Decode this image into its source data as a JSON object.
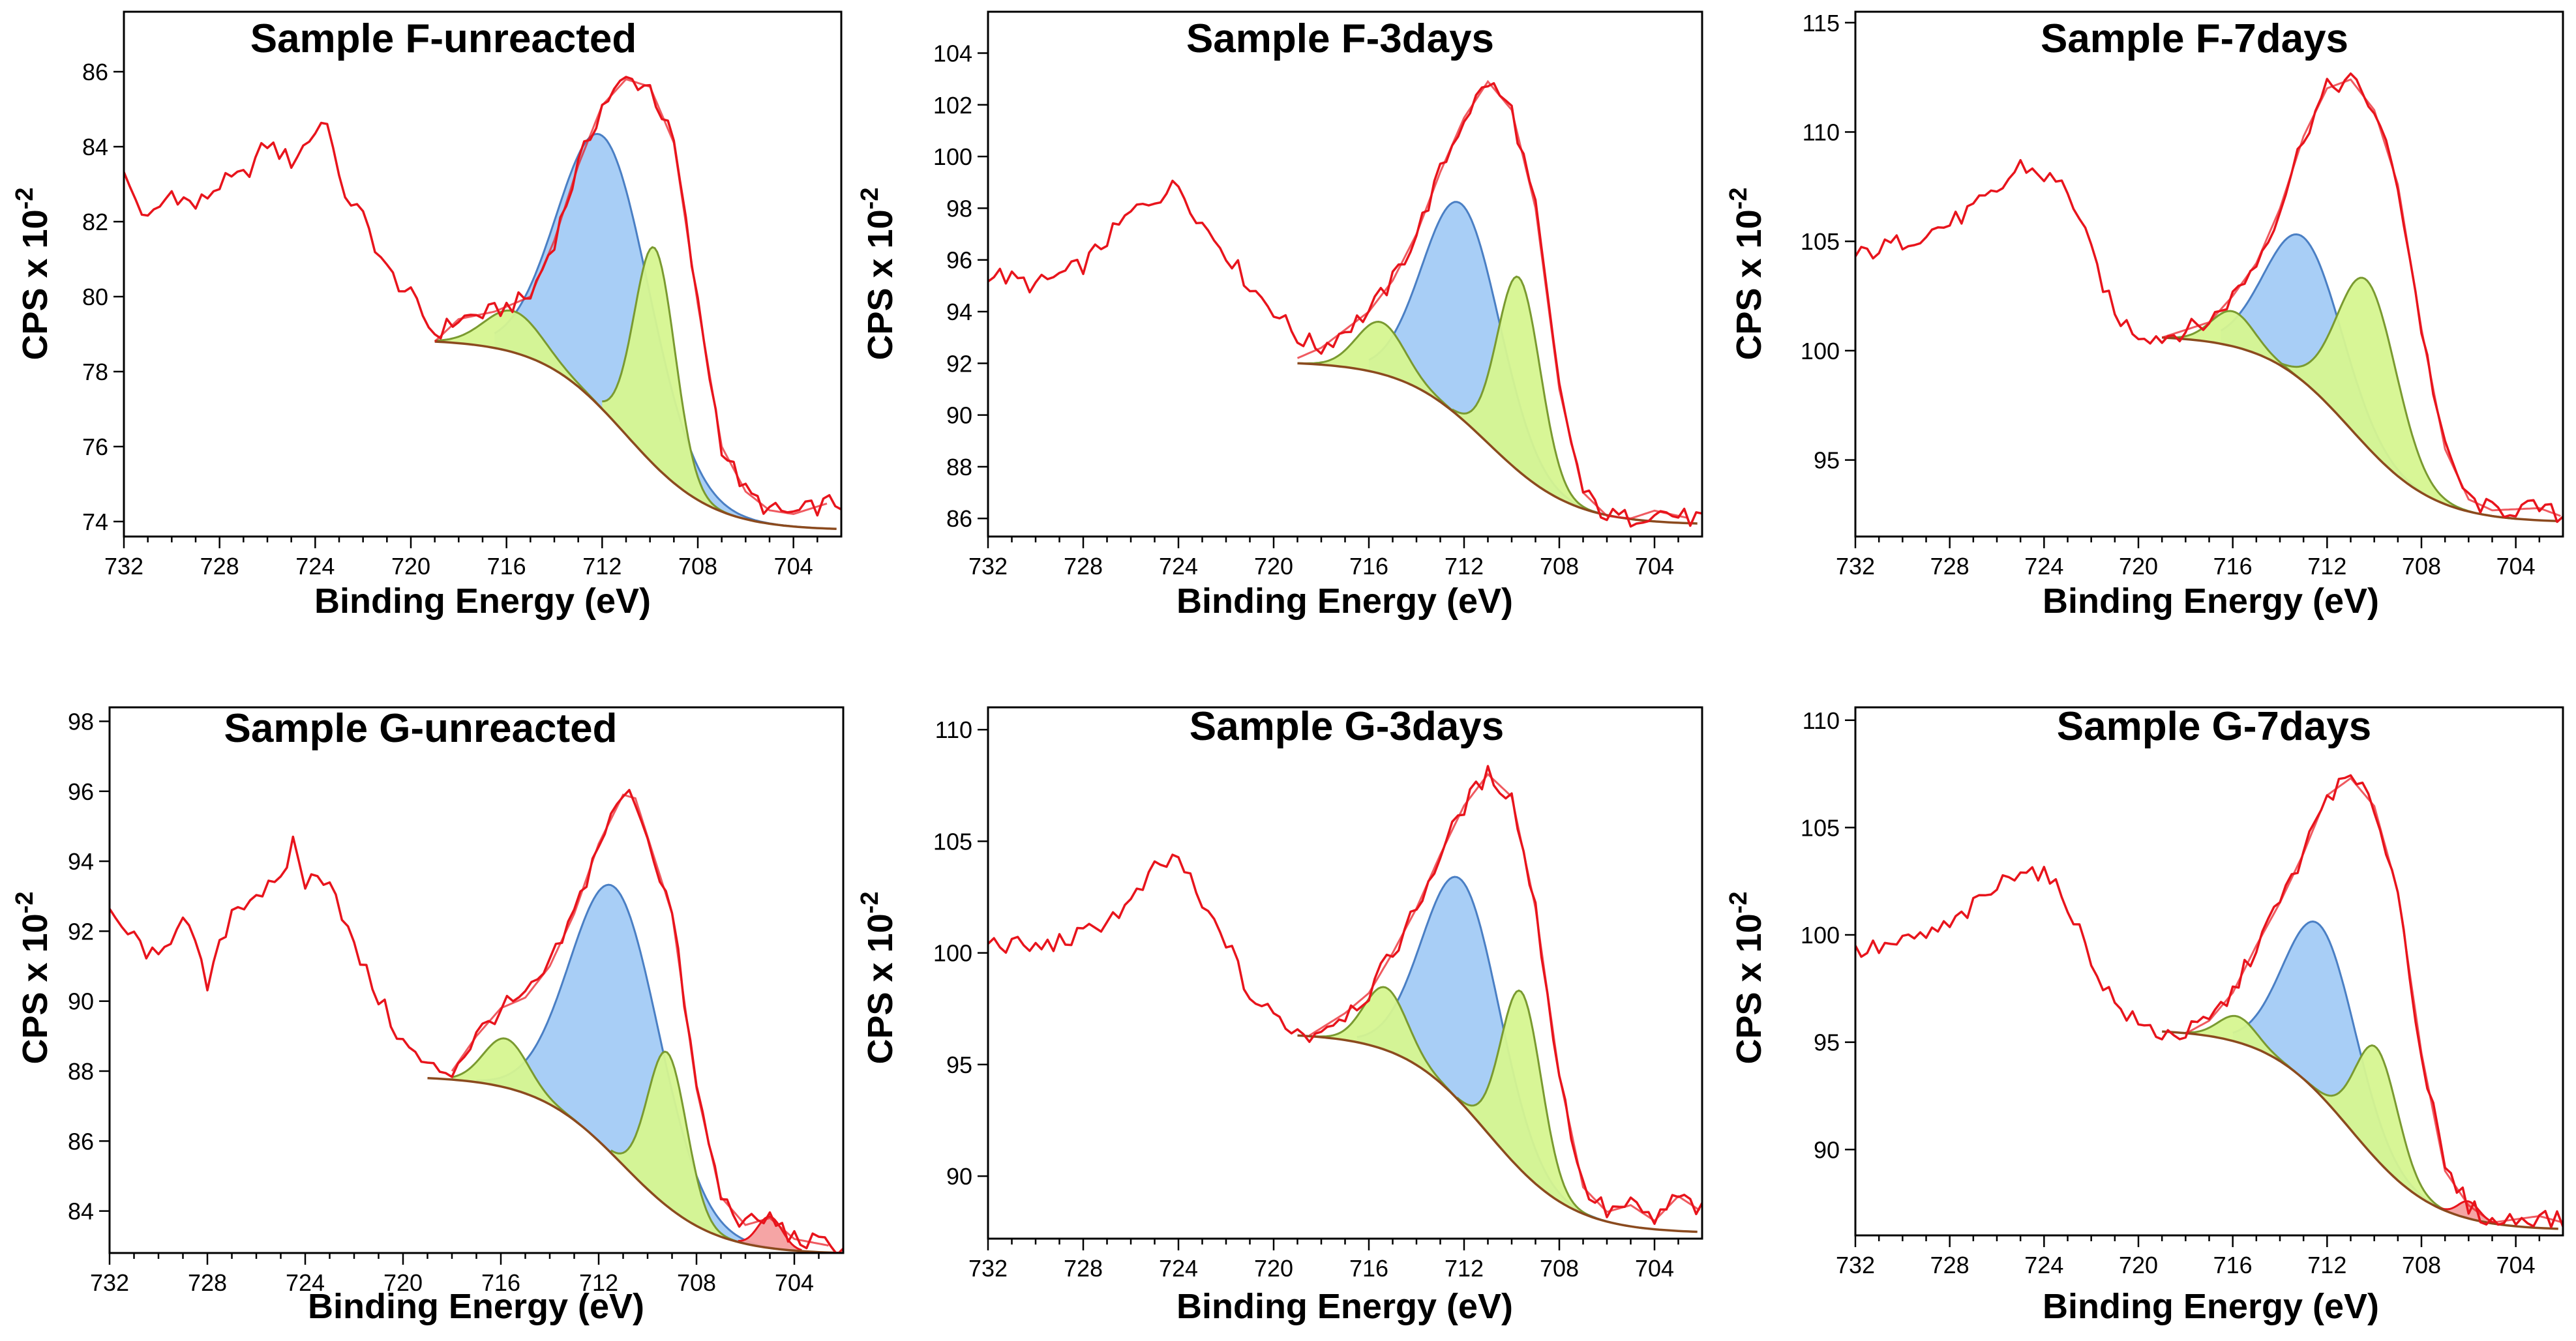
{
  "figure": {
    "x_axis_label": "Binding Energy (eV)",
    "y_axis_label": "CPS x 10",
    "y_axis_exponent": "-2"
  },
  "colors": {
    "envelope": "#e8141c",
    "main_peak": "#a3cbf5",
    "main_peak_edge": "#4a7fc4",
    "satellite": "#d6f590",
    "satellite_edge": "#7a9a30",
    "minor_peak": "#f4a0a0",
    "background": "#8b4a1e"
  },
  "chart_data": [
    {
      "type": "line",
      "id": "F-unreacted",
      "title": "Sample F-unreacted",
      "xlabel": "Binding Energy (eV)",
      "ylabel": "CPS x 10^-2",
      "xlim": [
        732,
        702
      ],
      "ylim": [
        73.6,
        87.6
      ],
      "xticks": [
        "732",
        "728",
        "724",
        "720",
        "716",
        "712",
        "708",
        "704"
      ],
      "yticks": [
        "74",
        "76",
        "78",
        "80",
        "82",
        "84",
        "86"
      ],
      "y_at_719": 78.8,
      "y_end": 73.8,
      "raw_pts": [
        [
          732,
          83.2
        ],
        [
          731,
          82.0
        ],
        [
          730,
          82.8
        ],
        [
          729,
          82.4
        ],
        [
          728,
          83.0
        ],
        [
          727,
          83.2
        ],
        [
          726,
          84.1
        ],
        [
          725,
          83.6
        ],
        [
          724,
          84.4
        ],
        [
          723.5,
          84.8
        ],
        [
          723,
          83.0
        ],
        [
          722,
          82.1
        ],
        [
          721,
          80.7
        ],
        [
          720,
          80.0
        ],
        [
          719,
          79.0
        ]
      ],
      "envelope": [
        [
          719,
          78.8
        ],
        [
          718,
          79.4
        ],
        [
          716.5,
          79.6
        ],
        [
          715,
          80.0
        ],
        [
          714,
          81.5
        ],
        [
          713,
          83.5
        ],
        [
          712,
          85.1
        ],
        [
          711,
          85.8
        ],
        [
          710,
          85.6
        ],
        [
          709,
          84.1
        ],
        [
          708,
          79.8
        ],
        [
          707,
          76.0
        ],
        [
          706,
          74.8
        ],
        [
          705,
          74.3
        ],
        [
          704,
          74.2
        ],
        [
          703,
          74.4
        ],
        [
          702.5,
          74.5
        ]
      ],
      "peaks": [
        {
          "kind": "main",
          "center": 711.9,
          "height": 7.3,
          "width": 1.9,
          "domain": [
            716.5,
            703
          ]
        },
        {
          "kind": "sat",
          "center": 709.8,
          "height": 5.8,
          "width": 0.85,
          "domain": [
            712,
            704
          ]
        },
        {
          "kind": "sat",
          "center": 715.7,
          "height": 1.1,
          "width": 1.2,
          "domain": [
            719,
            712
          ]
        }
      ]
    },
    {
      "type": "line",
      "id": "F-3days",
      "title": "Sample F-3days",
      "xlabel": "Binding Energy (eV)",
      "ylabel": "CPS x 10^-2",
      "xlim": [
        732,
        702
      ],
      "ylim": [
        85.3,
        105.6
      ],
      "xticks": [
        "732",
        "728",
        "724",
        "720",
        "716",
        "712",
        "708",
        "704"
      ],
      "yticks": [
        "86",
        "88",
        "90",
        "92",
        "94",
        "96",
        "98",
        "100",
        "102",
        "104"
      ],
      "y_at_719": 92.0,
      "y_end": 85.8,
      "raw_pts": [
        [
          732,
          95.5
        ],
        [
          730,
          95.0
        ],
        [
          728,
          95.8
        ],
        [
          726,
          97.8
        ],
        [
          725,
          98.4
        ],
        [
          724,
          98.9
        ],
        [
          723,
          97.4
        ],
        [
          722,
          96.3
        ],
        [
          721,
          95.0
        ],
        [
          720,
          94.1
        ],
        [
          719,
          93.0
        ]
      ],
      "envelope": [
        [
          719,
          92.2
        ],
        [
          718,
          92.6
        ],
        [
          716,
          94.0
        ],
        [
          715,
          95.2
        ],
        [
          714,
          97.0
        ],
        [
          713,
          99.4
        ],
        [
          712,
          101.5
        ],
        [
          711,
          102.9
        ],
        [
          710,
          101.8
        ],
        [
          709,
          98.0
        ],
        [
          708,
          91.0
        ],
        [
          707,
          87.0
        ],
        [
          706,
          86.1
        ],
        [
          705,
          86.0
        ],
        [
          704,
          86.3
        ],
        [
          702.5,
          86.0
        ]
      ],
      "peaks": [
        {
          "kind": "main",
          "center": 712.1,
          "height": 8.3,
          "width": 1.6,
          "domain": [
            716,
            704
          ]
        },
        {
          "kind": "sat",
          "center": 709.7,
          "height": 7.5,
          "width": 0.9,
          "domain": [
            712.5,
            704
          ]
        },
        {
          "kind": "sat",
          "center": 715.5,
          "height": 2.0,
          "width": 1.0,
          "domain": [
            719,
            712
          ]
        }
      ]
    },
    {
      "type": "line",
      "id": "F-7days",
      "title": "Sample F-7days",
      "xlabel": "Binding Energy (eV)",
      "ylabel": "CPS x 10^-2",
      "xlim": [
        732,
        702
      ],
      "ylim": [
        91.5,
        115.5
      ],
      "xticks": [
        "732",
        "728",
        "724",
        "720",
        "716",
        "712",
        "708",
        "704"
      ],
      "yticks": [
        "95",
        "100",
        "105",
        "110",
        "115"
      ],
      "y_at_719": 100.6,
      "y_end": 92.2,
      "raw_pts": [
        [
          732,
          104.3
        ],
        [
          730,
          105.0
        ],
        [
          728,
          105.8
        ],
        [
          726,
          107.2
        ],
        [
          725,
          108.5
        ],
        [
          724,
          108.0
        ],
        [
          723,
          107.4
        ],
        [
          722,
          104.5
        ],
        [
          721,
          101.6
        ],
        [
          720,
          100.8
        ],
        [
          719,
          100.6
        ]
      ],
      "envelope": [
        [
          719,
          100.6
        ],
        [
          717,
          101.3
        ],
        [
          716,
          102.5
        ],
        [
          715,
          104.0
        ],
        [
          714,
          106.5
        ],
        [
          713,
          109.8
        ],
        [
          712,
          112.0
        ],
        [
          711,
          112.4
        ],
        [
          710,
          111.0
        ],
        [
          709,
          107.6
        ],
        [
          708,
          101.0
        ],
        [
          707,
          95.5
        ],
        [
          706,
          93.2
        ],
        [
          705,
          92.7
        ],
        [
          703,
          92.8
        ],
        [
          702,
          92.4
        ]
      ],
      "peaks": [
        {
          "kind": "main",
          "center": 713.0,
          "height": 6.6,
          "width": 1.6,
          "domain": [
            716.5,
            704
          ]
        },
        {
          "kind": "sat",
          "center": 710.3,
          "height": 7.6,
          "width": 1.25,
          "domain": [
            714.5,
            704
          ]
        },
        {
          "kind": "sat",
          "center": 716.0,
          "height": 1.6,
          "width": 0.9,
          "domain": [
            719,
            713
          ]
        }
      ]
    },
    {
      "type": "line",
      "id": "G-unreacted",
      "title": "Sample G-unreacted",
      "xlabel": "Binding Energy (eV)",
      "ylabel": "CPS x 10^-2",
      "xlim": [
        732,
        702
      ],
      "ylim": [
        82.8,
        98.4
      ],
      "xticks": [
        "732",
        "728",
        "724",
        "720",
        "716",
        "712",
        "708",
        "704"
      ],
      "yticks": [
        "84",
        "86",
        "88",
        "90",
        "92",
        "94",
        "96",
        "98"
      ],
      "y_at_719": 87.8,
      "y_end": 82.8,
      "raw_pts": [
        [
          732,
          92.4
        ],
        [
          731,
          91.8
        ],
        [
          730,
          91.1
        ],
        [
          729,
          92.6
        ],
        [
          728,
          90.4
        ],
        [
          727,
          92.6
        ],
        [
          726,
          93.1
        ],
        [
          725,
          93.3
        ],
        [
          724.5,
          94.6
        ],
        [
          724,
          93.4
        ],
        [
          723,
          93.6
        ],
        [
          722,
          91.5
        ],
        [
          721,
          90.1
        ],
        [
          720,
          88.8
        ],
        [
          719,
          88.1
        ]
      ],
      "envelope": [
        [
          718,
          88.0
        ],
        [
          717,
          89.0
        ],
        [
          716,
          89.8
        ],
        [
          715,
          90.1
        ],
        [
          714,
          91.0
        ],
        [
          713,
          92.5
        ],
        [
          712,
          94.5
        ],
        [
          711,
          95.9
        ],
        [
          710.5,
          95.8
        ],
        [
          709,
          92.5
        ],
        [
          708,
          87.5
        ],
        [
          707,
          84.4
        ],
        [
          706,
          83.6
        ],
        [
          705,
          83.8
        ],
        [
          704,
          83.2
        ],
        [
          702.5,
          83.0
        ]
      ],
      "peaks": [
        {
          "kind": "main",
          "center": 711.3,
          "height": 7.7,
          "width": 1.8,
          "domain": [
            717,
            704
          ]
        },
        {
          "kind": "sat",
          "center": 709.2,
          "height": 4.4,
          "width": 0.8,
          "domain": [
            711.5,
            704.5
          ]
        },
        {
          "kind": "sat",
          "center": 715.8,
          "height": 1.4,
          "width": 0.9,
          "domain": [
            718,
            712.5
          ]
        },
        {
          "kind": "minor",
          "center": 705.0,
          "height": 0.9,
          "width": 0.5,
          "domain": [
            706.3,
            703.7
          ]
        }
      ]
    },
    {
      "type": "line",
      "id": "G-3days",
      "title": "Sample G-3days",
      "xlabel": "Binding Energy (eV)",
      "ylabel": "CPS x 10^-2",
      "xlim": [
        732,
        702
      ],
      "ylim": [
        87.2,
        111.0
      ],
      "xticks": [
        "732",
        "728",
        "724",
        "720",
        "716",
        "712",
        "708",
        "704"
      ],
      "yticks": [
        "90",
        "95",
        "100",
        "105",
        "110"
      ],
      "y_at_719": 96.3,
      "y_end": 87.5,
      "raw_pts": [
        [
          732,
          100.5
        ],
        [
          730,
          100.2
        ],
        [
          728,
          100.8
        ],
        [
          726,
          102.2
        ],
        [
          725,
          103.7
        ],
        [
          724,
          104.3
        ],
        [
          723,
          102.0
        ],
        [
          722,
          100.6
        ],
        [
          721,
          98.0
        ],
        [
          720,
          97.2
        ],
        [
          719,
          96.5
        ]
      ],
      "envelope": [
        [
          718.5,
          96.3
        ],
        [
          717,
          97.3
        ],
        [
          716,
          98.2
        ],
        [
          715,
          100.0
        ],
        [
          714,
          102.0
        ],
        [
          713,
          104.4
        ],
        [
          712,
          106.6
        ],
        [
          711,
          108.0
        ],
        [
          710,
          107.0
        ],
        [
          709,
          102.0
        ],
        [
          708,
          94.5
        ],
        [
          707,
          89.5
        ],
        [
          706,
          88.4
        ],
        [
          705,
          88.7
        ],
        [
          704,
          88.0
        ],
        [
          703,
          89.1
        ],
        [
          702,
          88.4
        ]
      ],
      "peaks": [
        {
          "kind": "main",
          "center": 712.1,
          "height": 10.0,
          "width": 1.6,
          "domain": [
            716.5,
            704.5
          ]
        },
        {
          "kind": "sat",
          "center": 709.6,
          "height": 8.0,
          "width": 0.85,
          "domain": [
            712.3,
            704.5
          ]
        },
        {
          "kind": "sat",
          "center": 715.3,
          "height": 2.8,
          "width": 0.9,
          "domain": [
            718.5,
            712
          ]
        }
      ]
    },
    {
      "type": "line",
      "id": "G-7days",
      "title": "Sample G-7days",
      "xlabel": "Binding Energy (eV)",
      "ylabel": "CPS x 10^-2",
      "xlim": [
        732,
        702
      ],
      "ylim": [
        86.0,
        110.6
      ],
      "xticks": [
        "732",
        "728",
        "724",
        "720",
        "716",
        "712",
        "708",
        "704"
      ],
      "yticks": [
        "90",
        "95",
        "100",
        "105",
        "110"
      ],
      "y_at_719": 95.5,
      "y_end": 86.3,
      "raw_pts": [
        [
          732,
          99.2
        ],
        [
          730,
          99.6
        ],
        [
          728,
          100.4
        ],
        [
          726,
          102.2
        ],
        [
          725,
          103.2
        ],
        [
          724,
          102.8
        ],
        [
          723,
          101.5
        ],
        [
          722,
          98.8
        ],
        [
          721,
          96.8
        ],
        [
          720,
          95.8
        ],
        [
          719,
          95.4
        ]
      ],
      "envelope": [
        [
          718,
          95.4
        ],
        [
          717,
          96.0
        ],
        [
          716,
          97.3
        ],
        [
          715,
          99.5
        ],
        [
          714,
          101.5
        ],
        [
          713,
          103.8
        ],
        [
          712,
          106.5
        ],
        [
          711,
          107.3
        ],
        [
          710,
          106.0
        ],
        [
          709,
          102.0
        ],
        [
          708,
          94.5
        ],
        [
          707,
          89.0
        ],
        [
          706,
          87.4
        ],
        [
          705,
          86.6
        ],
        [
          703,
          86.9
        ],
        [
          702,
          86.6
        ]
      ],
      "peaks": [
        {
          "kind": "main",
          "center": 712.3,
          "height": 7.9,
          "width": 1.5,
          "domain": [
            716,
            704.5
          ]
        },
        {
          "kind": "sat",
          "center": 709.9,
          "height": 5.2,
          "width": 0.9,
          "domain": [
            713,
            704.5
          ]
        },
        {
          "kind": "sat",
          "center": 715.8,
          "height": 1.2,
          "width": 0.8,
          "domain": [
            718,
            713
          ]
        },
        {
          "kind": "minor",
          "center": 706.0,
          "height": 0.8,
          "width": 0.45,
          "domain": [
            707.2,
            704.8
          ]
        }
      ]
    }
  ]
}
